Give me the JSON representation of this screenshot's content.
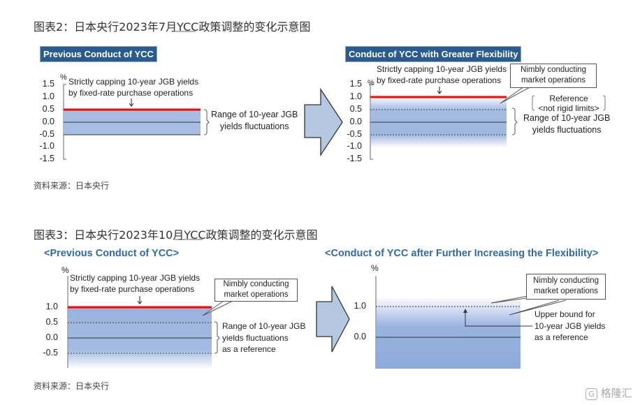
{
  "figure2": {
    "title": "图表2：日本央行2023年7月YCC政策调整的变化示意图",
    "source": "资料来源：日本央行",
    "left": {
      "header": "Previous Conduct of YCC",
      "unit": "%",
      "y_ticks": [
        "1.5",
        "1.0",
        "0.5",
        "0.0",
        "-0.5",
        "-1.0",
        "-1.5"
      ],
      "annotation": [
        "Strictly capping 10-year JGB yields",
        "by fixed-rate purchase operations"
      ],
      "range_label": [
        "Range of 10-year JGB",
        "yields fluctuations"
      ],
      "cap": 0.5,
      "range": [
        -0.5,
        0.5
      ]
    },
    "right": {
      "header": "Conduct of YCC with Greater Flexibility",
      "unit": "%",
      "y_ticks": [
        "1.5",
        "1.0",
        "0.5",
        "0.0",
        "-0.5",
        "-1.0",
        "-1.5"
      ],
      "annotation": [
        "Strictly capping 10-year JGB yields",
        "by fixed-rate purchase operations"
      ],
      "callout": [
        "Nimbly conducting",
        "market operations"
      ],
      "reference_label": [
        "Reference",
        "<not rigid limits>"
      ],
      "range_label": [
        "Range of 10-year JGB",
        "yields fluctuations"
      ],
      "cap": 1.0,
      "range": [
        -0.5,
        0.5
      ]
    }
  },
  "figure3": {
    "title": "图表3：日本央行2023年10月YCC政策调整的变化示意图",
    "source": "资料来源：日本央行",
    "left": {
      "header": "<Previous Conduct of YCC>",
      "unit": "%",
      "y_ticks": [
        "1.0",
        "0.5",
        "0.0",
        "-0.5"
      ],
      "annotation": [
        "Strictly capping 10-year JGB yields",
        "by fixed-rate purchase operations"
      ],
      "callout": [
        "Nimbly conducting",
        "market operations"
      ],
      "range_label": [
        "Range of 10-year JGB",
        "yields fluctuations",
        "as a reference"
      ],
      "cap": 1.0,
      "range": [
        -0.5,
        0.5
      ]
    },
    "right": {
      "header": "<Conduct of YCC after Further Increasing the Flexibility>",
      "unit": "%",
      "y_ticks": [
        "1.0",
        "0.0"
      ],
      "callout": [
        "Nimbly conducting",
        "market operations"
      ],
      "upper_label": [
        "Upper bound for",
        "10-year JGB yields",
        "as a reference"
      ],
      "reference_upper": 1.0
    }
  },
  "colors": {
    "header_bg": "#2b5b8c",
    "title_blue": "#2e6aa3",
    "cap_line": "#ff0000",
    "fill": "#8eaadb",
    "arrow_fill": "#b4c8e2"
  },
  "watermark": "格隆汇"
}
